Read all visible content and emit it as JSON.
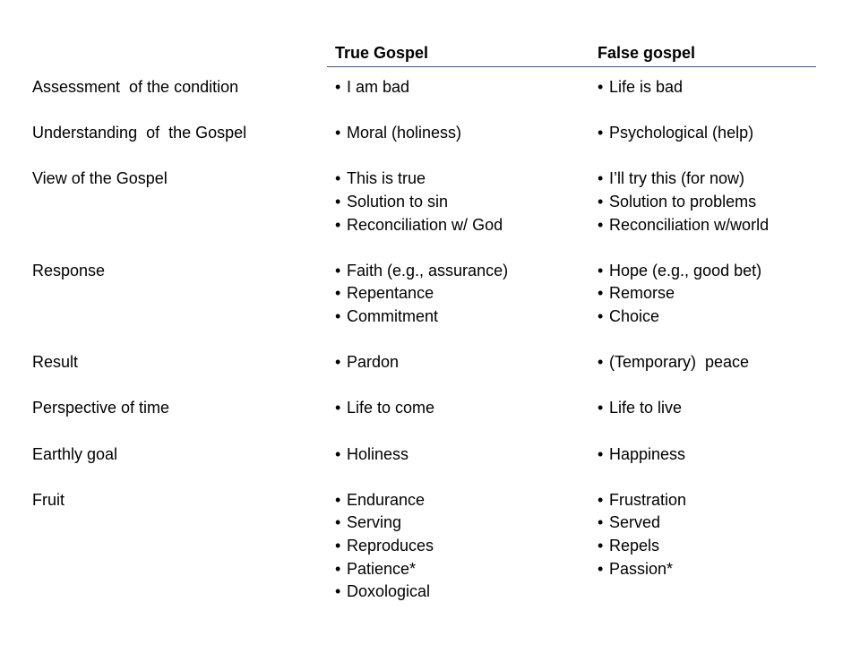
{
  "header": {
    "true_col": "True Gospel",
    "false_col": "False gospel"
  },
  "bullet": "•",
  "rule_color": "#3d5a78",
  "rows": [
    {
      "label": "Assessment  of the condition",
      "true": [
        "I am bad"
      ],
      "false": [
        "Life is bad"
      ]
    },
    {
      "label": "Understanding  of  the Gospel",
      "true": [
        "Moral (holiness)"
      ],
      "false": [
        "Psychological (help)"
      ]
    },
    {
      "label": "View of the Gospel",
      "true": [
        "This is true",
        "Solution to sin",
        "Reconciliation w/ God"
      ],
      "false": [
        "I’ll try this (for now)",
        "Solution to problems",
        "Reconciliation w/world"
      ]
    },
    {
      "label": "Response",
      "true": [
        "Faith (e.g., assurance)",
        "Repentance",
        "Commitment"
      ],
      "false": [
        "Hope (e.g., good bet)",
        "Remorse",
        "Choice"
      ]
    },
    {
      "label": "Result",
      "true": [
        "Pardon"
      ],
      "false": [
        "(Temporary)  peace"
      ]
    },
    {
      "label": "Perspective of time",
      "true": [
        "Life to come"
      ],
      "false": [
        "Life to live"
      ]
    },
    {
      "label": "Earthly goal",
      "true": [
        "Holiness"
      ],
      "false": [
        "Happiness"
      ]
    },
    {
      "label": "Fruit",
      "true": [
        "Endurance",
        "Serving",
        "Reproduces",
        "Patience*",
        "Doxological"
      ],
      "false": [
        "Frustration",
        "Served",
        "Repels",
        "Passion*"
      ]
    }
  ]
}
